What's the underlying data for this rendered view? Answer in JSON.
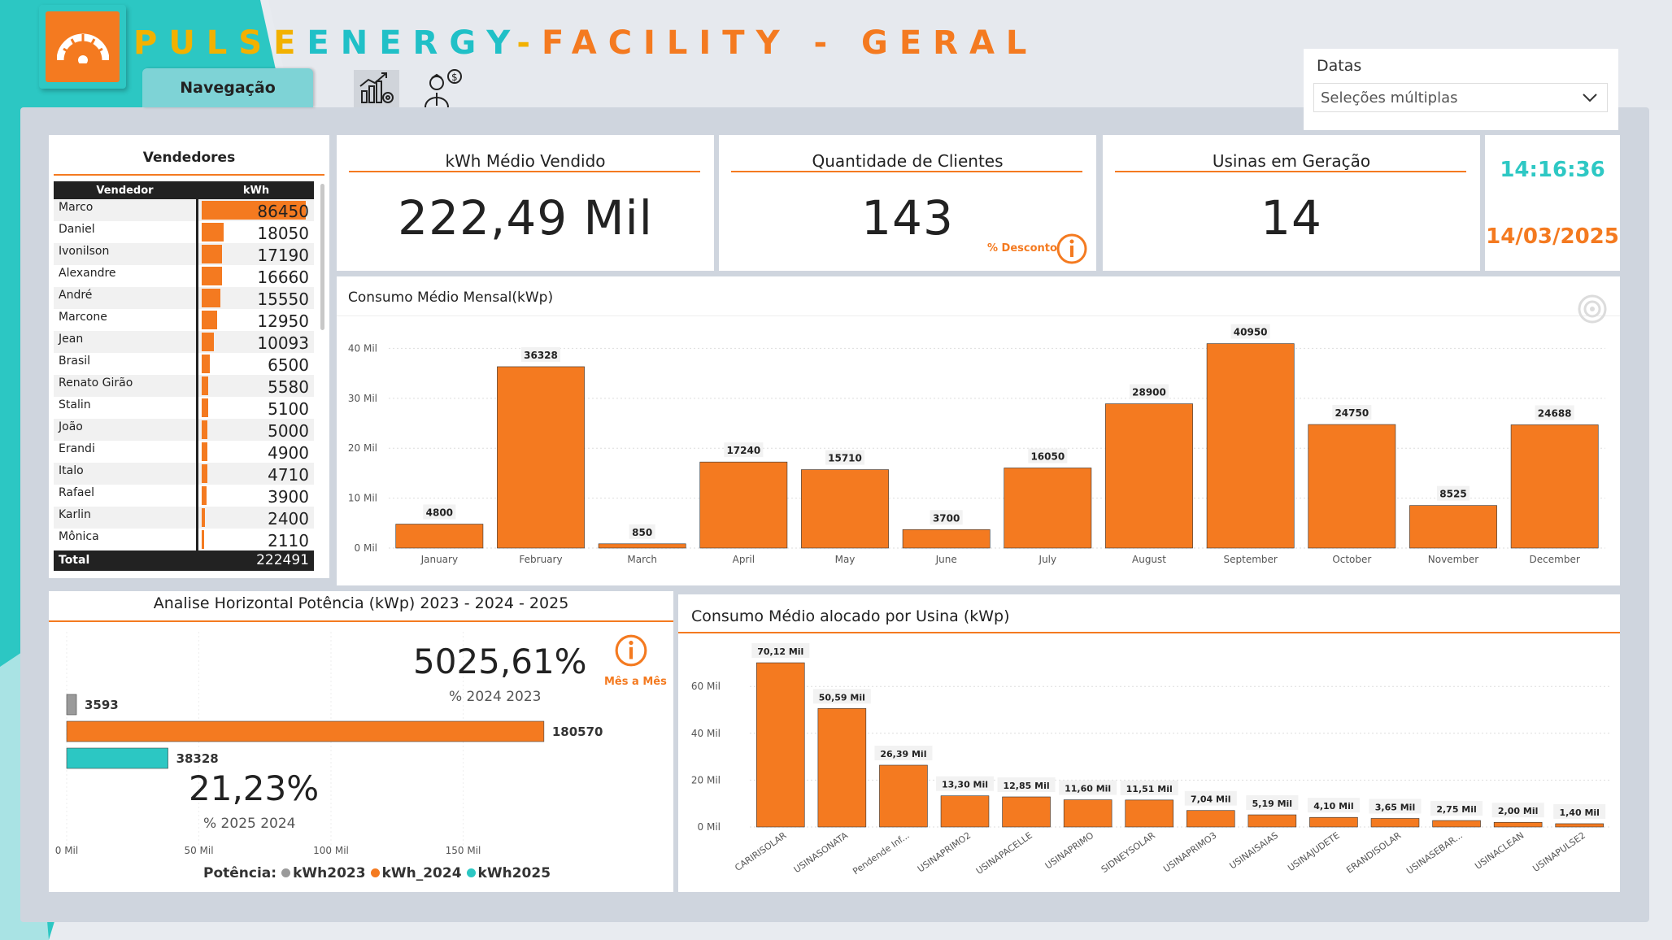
{
  "header": {
    "title_part1": "PULSE",
    "title_part2": "ENERGY",
    "title_sep": "-",
    "title_part3": "FACILITY - GERAL",
    "nav_label": "Navegação"
  },
  "slicer": {
    "label": "Datas",
    "value": "Seleções múltiplas"
  },
  "kpis": {
    "kwh_title": "kWh Médio Vendido",
    "kwh_value": "222,49 Mil",
    "clients_title": "Quantidade de Clientes",
    "clients_value": "143",
    "discount_label": "% Desconto",
    "usinas_title": "Usinas em Geração",
    "usinas_value": "14",
    "time": "14:16:36",
    "date": "14/03/2025"
  },
  "vendors": {
    "title": "Vendedores",
    "col_name": "Vendedor",
    "col_value": "kWh",
    "rows": [
      {
        "name": "Marco",
        "value": "86450",
        "amount": 86450
      },
      {
        "name": "Daniel",
        "value": "18050",
        "amount": 18050
      },
      {
        "name": "Ivonilson",
        "value": "17190",
        "amount": 17190
      },
      {
        "name": "Alexandre",
        "value": "16660",
        "amount": 16660
      },
      {
        "name": "André",
        "value": "15550",
        "amount": 15550
      },
      {
        "name": "Marcone",
        "value": "12950",
        "amount": 12950
      },
      {
        "name": "Jean",
        "value": "10093",
        "amount": 10093
      },
      {
        "name": "Brasil",
        "value": "6500",
        "amount": 6500
      },
      {
        "name": "Renato Girão",
        "value": "5580",
        "amount": 5580
      },
      {
        "name": "Stalin",
        "value": "5100",
        "amount": 5100
      },
      {
        "name": "João",
        "value": "5000",
        "amount": 5000
      },
      {
        "name": "Erandi",
        "value": "4900",
        "amount": 4900
      },
      {
        "name": "Italo",
        "value": "4710",
        "amount": 4710
      },
      {
        "name": "Rafael",
        "value": "3900",
        "amount": 3900
      },
      {
        "name": "Karlin",
        "value": "2400",
        "amount": 2400
      },
      {
        "name": "Mônica",
        "value": "2110",
        "amount": 2110
      }
    ],
    "total_label": "Total",
    "total_value": "222491"
  },
  "monthly": {
    "title": "Consumo Médio Mensal(kWp)"
  },
  "horizontal": {
    "title": "Analise Horizontal Potência (kWp) 2023 - 2024 - 2025",
    "pct1": "5025,61%",
    "pct1_label": "% 2024 2023",
    "pct2": "21,23%",
    "pct2_label": "% 2025 2024",
    "mes_label": "Mês a Mês",
    "legend_title": "Potência:",
    "legend": [
      "kWh2023",
      "kWh_2024",
      "kWh2025"
    ]
  },
  "usina": {
    "title": "Consumo Médio alocado por Usina (kWp)"
  },
  "colors": {
    "orange": "#f47a20",
    "teal": "#2cc7c3",
    "gray": "#9a9a9a"
  },
  "chart_data": [
    {
      "type": "bar",
      "categories": [
        "January",
        "February",
        "March",
        "April",
        "May",
        "June",
        "July",
        "August",
        "September",
        "October",
        "November",
        "December"
      ],
      "values": [
        4800,
        36328,
        850,
        17240,
        15710,
        3700,
        16050,
        28900,
        40950,
        24750,
        8525,
        24688
      ],
      "data_labels": [
        "4800",
        "36328",
        "850",
        "17240",
        "15710",
        "3700",
        "16050",
        "28900",
        "40950",
        "24750",
        "8525",
        "24688"
      ],
      "title": "Consumo Médio Mensal(kWp)",
      "yticks": [
        0,
        10000,
        20000,
        30000,
        40000
      ],
      "ytick_labels": [
        "0 Mil",
        "10 Mil",
        "20 Mil",
        "30 Mil",
        "40 Mil"
      ],
      "ylim": [
        0,
        43000
      ],
      "grid": true
    },
    {
      "type": "bar",
      "orientation": "horizontal",
      "categories": [
        "kWh2023",
        "kWh_2024",
        "kWh2025"
      ],
      "values": [
        3593,
        180570,
        38328
      ],
      "data_labels": [
        "3593",
        "180570",
        "38328"
      ],
      "xticks": [
        0,
        50000,
        100000,
        150000
      ],
      "xtick_labels": [
        "0 Mil",
        "50 Mil",
        "100 Mil",
        "150 Mil"
      ],
      "xlim": [
        0,
        200000
      ],
      "legend": "bottom"
    },
    {
      "type": "bar",
      "categories": [
        "CARIRISOLAR",
        "USINASONATA",
        "Pendende Inf...",
        "USINAPRIMO2",
        "USINAPACELLE",
        "USINAPRIMO",
        "SIDNEYSOLAR",
        "USINAPRIMO3",
        "USINAISAIAS",
        "USINAJUDETE",
        "ERANDISOLAR",
        "USINASEBAR...",
        "USINACLEAN",
        "USINAPULSE2"
      ],
      "values": [
        70120,
        50590,
        26390,
        13300,
        12850,
        11600,
        11510,
        7040,
        5190,
        4100,
        3650,
        2750,
        2000,
        1400
      ],
      "data_labels": [
        "70,12 Mil",
        "50,59 Mil",
        "26,39 Mil",
        "13,30 Mil",
        "12,85 Mil",
        "11,60 Mil",
        "11,51 Mil",
        "7,04 Mil",
        "5,19 Mil",
        "4,10 Mil",
        "3,65 Mil",
        "2,75 Mil",
        "2,00 Mil",
        "1,40 Mil"
      ],
      "title": "Consumo Médio alocado por Usina (kWp)",
      "yticks": [
        0,
        20000,
        40000,
        60000
      ],
      "ytick_labels": [
        "0 Mil",
        "20 Mil",
        "40 Mil",
        "60 Mil"
      ],
      "ylim": [
        0,
        75000
      ],
      "grid": true
    }
  ]
}
